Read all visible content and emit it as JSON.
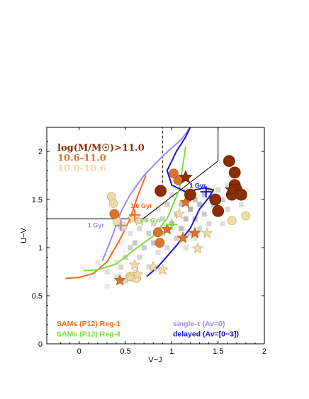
{
  "chart_data": {
    "type": "scatter",
    "xlabel": "V−J",
    "ylabel": "U−V",
    "xlim": [
      -0.35,
      2.0
    ],
    "ylim": [
      0.0,
      2.25
    ],
    "xticks": [
      "0",
      "0.5",
      "1",
      "1.5",
      "2"
    ],
    "yticks": [
      "0",
      "0.5",
      "1",
      "1.5",
      "2"
    ],
    "colors": {
      "dark_brown": "#8B2E00",
      "orange": "#D9752A",
      "pale": "#F2DCA6",
      "sam_reg1": "#F06A1E",
      "sam_reg4": "#77E03A",
      "single_tau": "#9B8BE8",
      "delayed": "#1515D6"
    },
    "mass_legend": [
      {
        "text": "log(M/M☉)>11.0",
        "color": "#8B2E00"
      },
      {
        "text": "10.6-11.0",
        "color": "#D9752A"
      },
      {
        "text": "10.0-10.6",
        "color": "#F2DCA6"
      }
    ],
    "legend": {
      "bottom_left": [
        {
          "text": "SAMs (P12) Reg-1",
          "color": "#F06A1E"
        },
        {
          "text": "SAMs (P12) Reg-4",
          "color": "#77E03A"
        }
      ],
      "bottom_right": [
        {
          "text": "single-τ (Av=0)",
          "color": "#9B8BE8"
        },
        {
          "text": "delayed (Av=[0−3])",
          "color": "#1515D6"
        }
      ]
    },
    "annotations": [
      {
        "text": "1.6 Gyr",
        "color": "#F06A1E",
        "x": 0.67,
        "y": 1.41
      },
      {
        "text": "1.6 Gyr",
        "color": "#77E03A",
        "x": 0.77,
        "y": 1.26
      },
      {
        "text": "1 Gyr",
        "color": "#9B8BE8",
        "x": 0.18,
        "y": 1.21
      },
      {
        "text": "1 Gyr",
        "color": "#1515D6",
        "x": 1.28,
        "y": 1.62
      }
    ],
    "quiescent_box": [
      [
        -0.35,
        1.3
      ],
      [
        0.69,
        1.3
      ],
      [
        1.5,
        1.9
      ],
      [
        1.5,
        2.25
      ]
    ],
    "dashed_line": [
      [
        0.9,
        1.62
      ],
      [
        0.9,
        2.25
      ]
    ],
    "tracks": [
      {
        "name": "SAMs (P12) Reg-1",
        "color": "#F06A1E",
        "points": [
          [
            -0.15,
            0.68
          ],
          [
            0.0,
            0.69
          ],
          [
            0.15,
            0.73
          ],
          [
            0.3,
            0.85
          ],
          [
            0.45,
            1.1
          ],
          [
            0.55,
            1.3
          ],
          [
            0.63,
            1.53
          ],
          [
            0.72,
            1.75
          ]
        ],
        "marker": [
          0.6,
          1.34
        ]
      },
      {
        "name": "SAMs (P12) Reg-4",
        "color": "#77E03A",
        "points": [
          [
            0.05,
            0.76
          ],
          [
            0.2,
            0.77
          ],
          [
            0.4,
            0.83
          ],
          [
            0.6,
            0.98
          ],
          [
            0.8,
            1.12
          ],
          [
            0.95,
            1.3
          ],
          [
            1.08,
            1.6
          ],
          [
            1.15,
            2.05
          ]
        ],
        "marker": [
          1.0,
          1.24
        ]
      },
      {
        "name": "single-τ (Av=0)",
        "color": "#9B8BE8",
        "points": [
          [
            0.25,
            0.86
          ],
          [
            0.35,
            1.1
          ],
          [
            0.45,
            1.37
          ],
          [
            0.55,
            1.55
          ],
          [
            0.7,
            1.75
          ],
          [
            0.9,
            1.95
          ],
          [
            1.1,
            2.12
          ],
          [
            1.2,
            2.25
          ]
        ],
        "marker": [
          0.45,
          1.23
        ]
      },
      {
        "name": "delayed (Av=[0−3])",
        "color": "#1515D6",
        "points": [
          [
            0.73,
            0.7
          ],
          [
            0.85,
            0.8
          ],
          [
            1.05,
            1.02
          ],
          [
            1.2,
            1.2
          ],
          [
            1.3,
            1.4
          ],
          [
            1.4,
            1.52
          ],
          [
            1.45,
            1.6
          ],
          [
            1.35,
            1.62
          ],
          [
            1.15,
            1.58
          ],
          [
            1.0,
            1.65
          ],
          [
            0.95,
            1.8
          ],
          [
            1.05,
            2.0
          ],
          [
            1.15,
            2.15
          ],
          [
            1.2,
            2.25
          ]
        ],
        "marker": [
          1.37,
          1.58
        ]
      }
    ],
    "heatmap": [
      [
        0.2,
        0.85,
        0.2
      ],
      [
        0.3,
        0.75,
        0.3
      ],
      [
        0.35,
        0.95,
        0.2
      ],
      [
        0.4,
        0.7,
        0.3
      ],
      [
        0.4,
        0.85,
        0.2
      ],
      [
        0.45,
        0.8,
        0.4
      ],
      [
        0.45,
        1.05,
        0.2
      ],
      [
        0.5,
        0.65,
        0.3
      ],
      [
        0.5,
        0.9,
        0.5
      ],
      [
        0.55,
        1.0,
        0.5
      ],
      [
        0.55,
        1.15,
        0.3
      ],
      [
        0.6,
        0.75,
        0.3
      ],
      [
        0.6,
        1.05,
        0.6
      ],
      [
        0.65,
        0.9,
        0.4
      ],
      [
        0.65,
        1.2,
        0.4
      ],
      [
        0.7,
        1.0,
        0.5
      ],
      [
        0.7,
        1.3,
        0.3
      ],
      [
        0.75,
        1.15,
        0.5
      ],
      [
        0.8,
        1.05,
        0.6
      ],
      [
        0.8,
        1.25,
        0.4
      ],
      [
        0.85,
        0.95,
        0.3
      ],
      [
        0.85,
        1.4,
        0.3
      ],
      [
        0.9,
        1.15,
        0.6
      ],
      [
        0.9,
        1.3,
        0.5
      ],
      [
        0.95,
        1.0,
        0.4
      ],
      [
        0.95,
        1.45,
        0.5
      ],
      [
        1.0,
        1.25,
        0.7
      ],
      [
        1.0,
        1.55,
        0.4
      ],
      [
        1.05,
        1.1,
        0.5
      ],
      [
        1.05,
        1.35,
        0.6
      ],
      [
        1.1,
        1.2,
        0.7
      ],
      [
        1.1,
        1.45,
        0.6
      ],
      [
        1.15,
        1.0,
        0.3
      ],
      [
        1.15,
        1.3,
        0.7
      ],
      [
        1.15,
        1.6,
        0.4
      ],
      [
        1.2,
        1.4,
        0.8
      ],
      [
        1.2,
        1.15,
        0.5
      ],
      [
        1.25,
        1.5,
        0.6
      ],
      [
        1.25,
        1.3,
        0.6
      ],
      [
        1.3,
        1.2,
        0.4
      ],
      [
        1.3,
        1.45,
        0.7
      ],
      [
        1.35,
        1.55,
        0.6
      ],
      [
        1.35,
        1.35,
        0.5
      ],
      [
        1.4,
        1.25,
        0.4
      ],
      [
        1.4,
        1.6,
        0.5
      ],
      [
        1.45,
        1.45,
        0.6
      ],
      [
        1.5,
        1.35,
        0.5
      ],
      [
        1.5,
        1.6,
        0.4
      ],
      [
        1.55,
        1.5,
        0.5
      ],
      [
        1.6,
        1.4,
        0.4
      ],
      [
        1.6,
        1.65,
        0.3
      ],
      [
        1.65,
        1.3,
        0.3
      ],
      [
        1.7,
        1.55,
        0.4
      ],
      [
        1.75,
        1.45,
        0.3
      ],
      [
        1.8,
        1.6,
        0.2
      ],
      [
        1.55,
        1.25,
        0.3
      ],
      [
        0.3,
        0.6,
        0.2
      ],
      [
        0.55,
        0.7,
        0.2
      ],
      [
        0.75,
        0.8,
        0.3
      ],
      [
        1.25,
        1.1,
        0.3
      ]
    ],
    "points": [
      {
        "x": 1.62,
        "y": 1.9,
        "mass": "high",
        "shape": "circle"
      },
      {
        "x": 1.68,
        "y": 1.78,
        "mass": "high",
        "shape": "circle"
      },
      {
        "x": 1.68,
        "y": 1.65,
        "mass": "high",
        "shape": "circle"
      },
      {
        "x": 1.7,
        "y": 1.6,
        "mass": "high",
        "shape": "circle"
      },
      {
        "x": 1.75,
        "y": 1.55,
        "mass": "high",
        "shape": "circle"
      },
      {
        "x": 1.65,
        "y": 1.55,
        "mass": "high",
        "shape": "circle"
      },
      {
        "x": 1.47,
        "y": 1.5,
        "mass": "high",
        "shape": "circle"
      },
      {
        "x": 1.5,
        "y": 1.38,
        "mass": "high",
        "shape": "circle"
      },
      {
        "x": 0.88,
        "y": 1.59,
        "mass": "high",
        "shape": "circle"
      },
      {
        "x": 1.2,
        "y": 1.55,
        "mass": "high",
        "shape": "circle"
      },
      {
        "x": 1.65,
        "y": 1.6,
        "mass": "high",
        "shape": "star"
      },
      {
        "x": 1.15,
        "y": 1.73,
        "mass": "high",
        "shape": "star"
      },
      {
        "x": 1.07,
        "y": 1.7,
        "mass": "mid",
        "shape": "circle"
      },
      {
        "x": 1.02,
        "y": 1.77,
        "mass": "mid",
        "shape": "circle"
      },
      {
        "x": 0.38,
        "y": 1.35,
        "mass": "mid",
        "shape": "circle"
      },
      {
        "x": 0.85,
        "y": 1.16,
        "mass": "mid",
        "shape": "circle"
      },
      {
        "x": 0.87,
        "y": 1.05,
        "mass": "mid",
        "shape": "circle"
      },
      {
        "x": 1.15,
        "y": 1.47,
        "mass": "mid",
        "shape": "star"
      },
      {
        "x": 0.95,
        "y": 1.19,
        "mass": "mid",
        "shape": "star"
      },
      {
        "x": 1.12,
        "y": 1.1,
        "mass": "mid",
        "shape": "star"
      },
      {
        "x": 1.25,
        "y": 1.15,
        "mass": "mid",
        "shape": "star"
      },
      {
        "x": 0.44,
        "y": 0.66,
        "mass": "mid",
        "shape": "star"
      },
      {
        "x": 0.35,
        "y": 1.53,
        "mass": "low",
        "shape": "circle"
      },
      {
        "x": 0.37,
        "y": 1.46,
        "mass": "low",
        "shape": "circle"
      },
      {
        "x": 0.41,
        "y": 1.27,
        "mass": "low",
        "shape": "circle"
      },
      {
        "x": 0.47,
        "y": 1.22,
        "mass": "low",
        "shape": "circle"
      },
      {
        "x": 1.65,
        "y": 1.28,
        "mass": "low",
        "shape": "circle"
      },
      {
        "x": 1.8,
        "y": 1.33,
        "mass": "low",
        "shape": "circle"
      },
      {
        "x": 0.55,
        "y": 0.7,
        "mass": "low",
        "shape": "circle"
      },
      {
        "x": 0.62,
        "y": 0.68,
        "mass": "low",
        "shape": "circle"
      },
      {
        "x": 0.58,
        "y": 1.3,
        "mass": "low",
        "shape": "star"
      },
      {
        "x": 0.65,
        "y": 1.28,
        "mass": "low",
        "shape": "star"
      },
      {
        "x": 1.08,
        "y": 1.35,
        "mass": "low",
        "shape": "star"
      },
      {
        "x": 1.28,
        "y": 0.99,
        "mass": "low",
        "shape": "star"
      },
      {
        "x": 1.38,
        "y": 1.15,
        "mass": "low",
        "shape": "star"
      },
      {
        "x": 0.8,
        "y": 0.8,
        "mass": "low",
        "shape": "star"
      },
      {
        "x": 0.9,
        "y": 0.77,
        "mass": "low",
        "shape": "star"
      },
      {
        "x": 0.55,
        "y": 0.69,
        "mass": "low",
        "shape": "star"
      },
      {
        "x": 0.63,
        "y": 0.72,
        "mass": "low",
        "shape": "star"
      },
      {
        "x": 0.6,
        "y": 0.82,
        "mass": "low",
        "shape": "star"
      }
    ]
  }
}
